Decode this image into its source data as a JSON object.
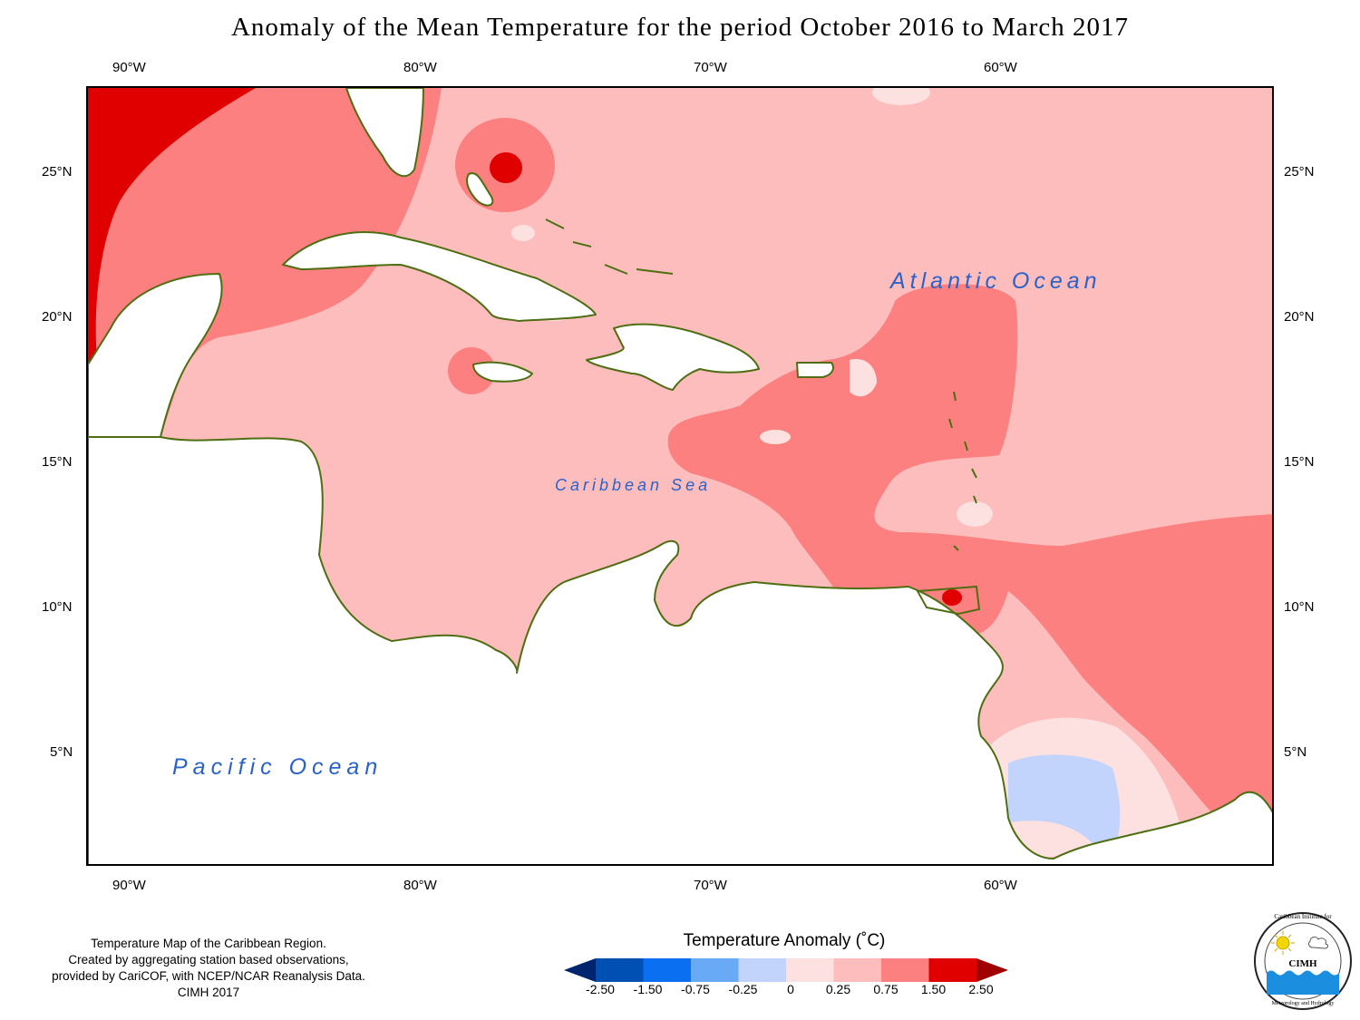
{
  "title": "Anomaly of the Mean Temperature for the period October 2016 to March 2017",
  "map": {
    "longitude_labels": [
      "90°W",
      "80°W",
      "70°W",
      "60°W"
    ],
    "latitude_labels": [
      "25°N",
      "20°N",
      "15°N",
      "10°N",
      "5°N"
    ],
    "ocean_labels": {
      "atlantic": "Atlantic Ocean",
      "caribbean": "Caribbean Sea",
      "pacific": "Pacific Ocean"
    },
    "colors": {
      "anomaly_0_to_0_25": "#fde0e0",
      "anomaly_0_25_to_0_75": "#fdbdbd",
      "anomaly_0_75_to_1_50": "#fc8080",
      "anomaly_1_50_to_2_50": "#e00000",
      "anomaly_neg_0_25_to_0": "#c2d4fb",
      "land_outline": "#4e6e12"
    }
  },
  "credit": {
    "line1": "Temperature Map of the Caribbean Region.",
    "line2": "Created by aggregating station based observations,",
    "line3": "provided by CariCOF, with NCEP/NCAR Reanalysis Data.",
    "line4": "CIMH 2017"
  },
  "legend": {
    "title": "Temperature Anomaly (˚C)",
    "labels": [
      "-2.50",
      "-1.50",
      "-0.75",
      "-0.25",
      "0",
      "0.25",
      "0.75",
      "1.50",
      "2.50"
    ],
    "colors": [
      "#00256e",
      "#0050b4",
      "#0a6ff0",
      "#68aaf5",
      "#c2d4fb",
      "#fde0e0",
      "#fdbdbd",
      "#fc8080",
      "#e00000",
      "#a00000"
    ]
  },
  "logo": {
    "text": "CIMH",
    "ring_top": "Caribbean Institute for",
    "ring_bottom": "Meteorology and Hydrology"
  }
}
